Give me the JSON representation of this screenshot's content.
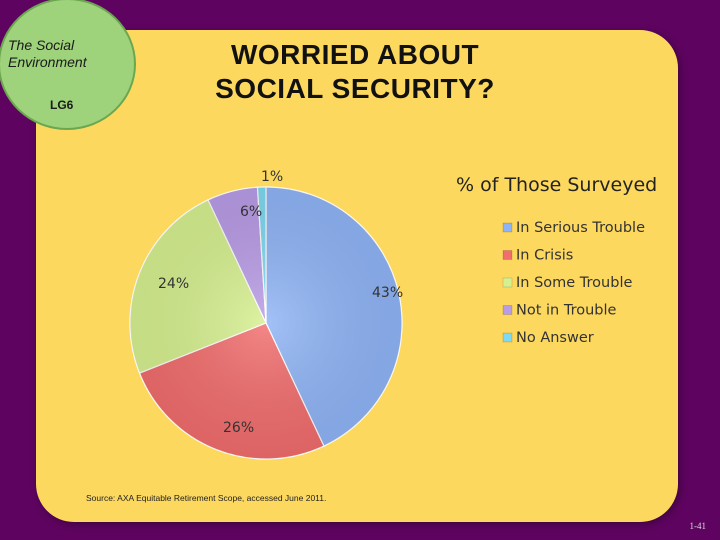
{
  "badge": {
    "title_line1": "The Social",
    "title_line2": "Environment",
    "lg": "LG6"
  },
  "slide_title": {
    "line1": "WORRIED ABOUT",
    "line2": "SOCIAL SECURITY?"
  },
  "source": "Source: AXA Equitable Retirement Scope, accessed June 2011.",
  "page_number": "1-41",
  "colors": {
    "background": "#5e0460",
    "panel": "#fdd85f",
    "badge": "#9ed27b"
  },
  "chart_data": {
    "type": "pie",
    "title": "% of Those Surveyed",
    "series": [
      {
        "name": "In Serious Trouble",
        "value": 43,
        "label": "43%",
        "color": "#8fb4f6"
      },
      {
        "name": "In Crisis",
        "value": 26,
        "label": "26%",
        "color": "#f26d6d"
      },
      {
        "name": "In Some Trouble",
        "value": 24,
        "label": "24%",
        "color": "#d6f08f"
      },
      {
        "name": "Not in Trouble",
        "value": 6,
        "label": "6%",
        "color": "#b99ce6"
      },
      {
        "name": "No Answer",
        "value": 1,
        "label": "1%",
        "color": "#7fd9f0"
      }
    ]
  }
}
